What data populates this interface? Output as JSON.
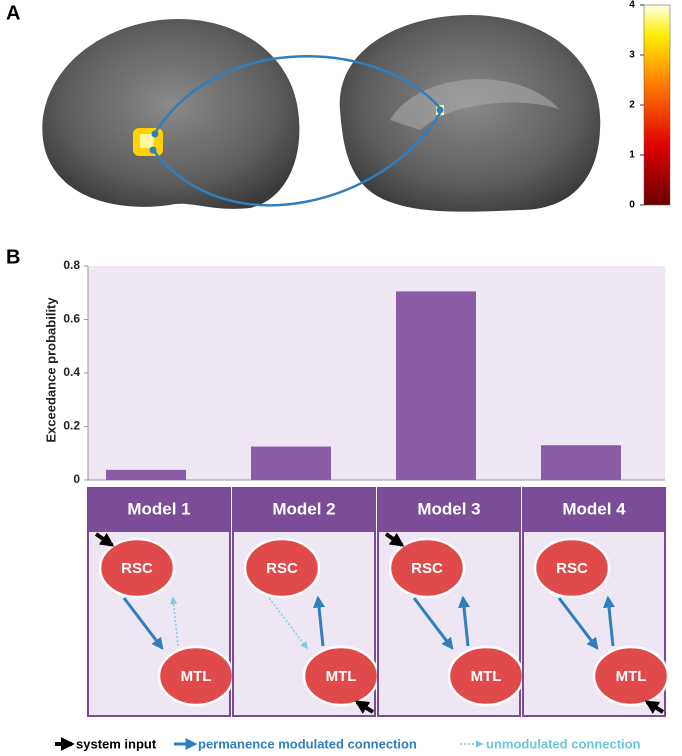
{
  "panel_labels": [
    "A",
    "B"
  ],
  "colorbar": {
    "ylim": [
      0,
      4
    ],
    "yticks": [
      0,
      1,
      2,
      3,
      4
    ]
  },
  "chart_data": {
    "type": "bar",
    "ylabel": "Exceedance probability",
    "categories": [
      "Model 1",
      "Model 2",
      "Model 3",
      "Model 4"
    ],
    "values": [
      0.038,
      0.125,
      0.705,
      0.13
    ],
    "color": "#8b5ca6",
    "ylim": [
      0,
      0.8
    ],
    "yticks": [
      0,
      0.2,
      0.4,
      0.6,
      0.8
    ]
  },
  "models": [
    {
      "nodes": [
        "RSC",
        "MTL"
      ]
    },
    {
      "nodes": [
        "RSC",
        "MTL"
      ]
    },
    {
      "nodes": [
        "RSC",
        "MTL"
      ]
    },
    {
      "nodes": [
        "RSC",
        "MTL"
      ]
    }
  ],
  "legend": [
    "system input",
    "permanence modulated connection",
    "unmodulated connection"
  ]
}
